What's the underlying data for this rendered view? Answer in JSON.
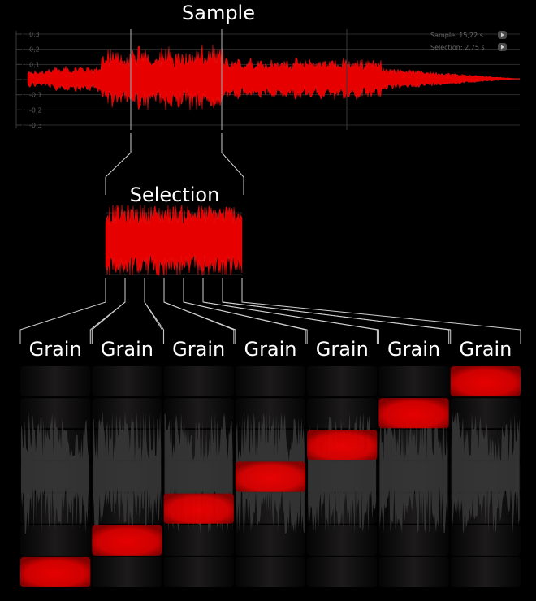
{
  "sample": {
    "title": "Sample",
    "y_ticks": [
      "0,3",
      "0,2",
      "0,1",
      "0",
      "-0,1",
      "-0,2",
      "-0,3"
    ],
    "info": [
      {
        "label": "Sample:",
        "value": "15,22 s"
      },
      {
        "label": "Selection:",
        "value": "2,75 s"
      }
    ]
  },
  "selection": {
    "title": "Selection"
  },
  "grains": {
    "labels": [
      "Grain",
      "Grain",
      "Grain",
      "Grain",
      "Grain",
      "Grain",
      "Grain"
    ],
    "levels": [
      1,
      2,
      3,
      4,
      5,
      6,
      7
    ],
    "rows": 7
  },
  "colors": {
    "waveform": "#e60000",
    "highlight": "#e00000",
    "grain_wave": "#3a3a3a",
    "connector": "#d0d0d0",
    "grid": "#2b2b2b"
  }
}
